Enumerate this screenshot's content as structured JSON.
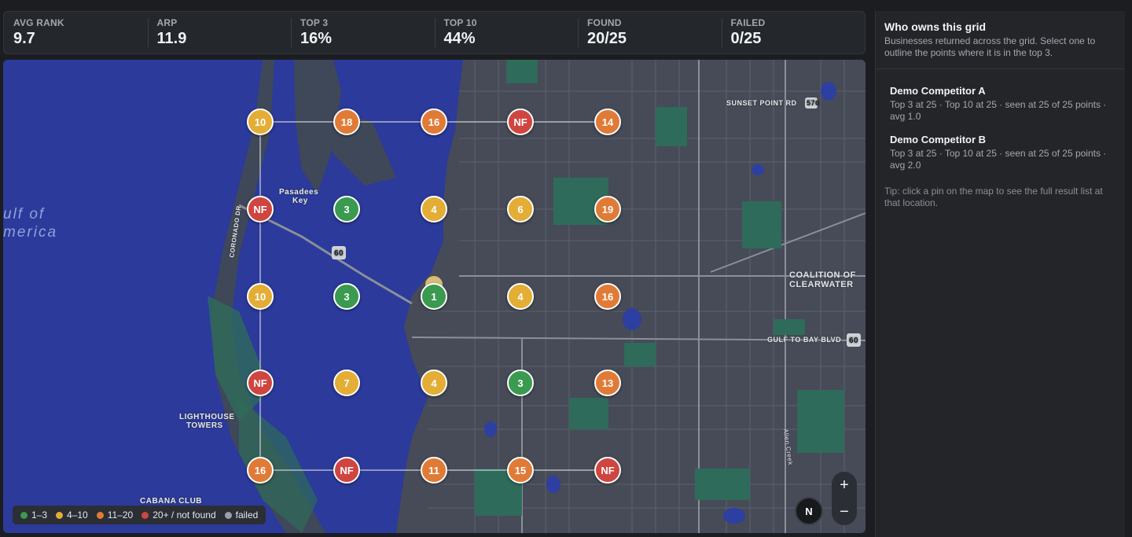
{
  "stats": [
    {
      "label": "AVG RANK",
      "value": "9.7"
    },
    {
      "label": "ARP",
      "value": "11.9"
    },
    {
      "label": "TOP 3",
      "value": "16%"
    },
    {
      "label": "TOP 10",
      "value": "44%"
    },
    {
      "label": "FOUND",
      "value": "20/25"
    },
    {
      "label": "FAILED",
      "value": "0/25"
    }
  ],
  "map": {
    "labels": {
      "gulf_line1": "ulf of",
      "gulf_line2": "merica",
      "pasadena_key_1": "Pasadees",
      "pasadena_key_2": "Key",
      "coronado": "CORONADO DR",
      "sunset": "SUNSET POINT RD",
      "route_576": "576",
      "route_60a": "60",
      "route_60b": "60",
      "coalition_1": "COALITION OF",
      "coalition_2": "CLEARWATER",
      "gulf_to_bay": "GULF TO BAY BLVD",
      "lighthouse_1": "LIGHTHOUSE",
      "lighthouse_2": "TOWERS",
      "cabana": "CABANA CLUB",
      "allen_creek": "Allen Creek"
    },
    "grid_ranks": [
      [
        "10",
        "18",
        "16",
        "NF",
        "14"
      ],
      [
        "NF",
        "3",
        "4",
        "6",
        "19"
      ],
      [
        "10",
        "3",
        "1",
        "4",
        "16"
      ],
      [
        "NF",
        "7",
        "4",
        "3",
        "13"
      ],
      [
        "16",
        "NF",
        "11",
        "15",
        "NF"
      ]
    ],
    "legend": [
      {
        "label": "1–3",
        "color": "#3a9a4f"
      },
      {
        "label": "4–10",
        "color": "#e3ad36"
      },
      {
        "label": "11–20",
        "color": "#e07b37"
      },
      {
        "label": "20+ / not found",
        "color": "#cf4540"
      },
      {
        "label": "failed",
        "color": "#9aa0a8"
      }
    ],
    "controls": {
      "zoom_in": "+",
      "zoom_out": "−",
      "compass": "N"
    }
  },
  "panel": {
    "title": "Who owns this grid",
    "subtitle": "Businesses returned across the grid. Select one to outline the points where it is in the top 3.",
    "competitors": [
      {
        "name": "Demo Competitor A",
        "meta": "Top 3 at 25 · Top 10 at 25 · seen at 25 of 25 points · avg 1.0"
      },
      {
        "name": "Demo Competitor B",
        "meta": "Top 3 at 25 · Top 10 at 25 · seen at 25 of 25 points · avg 2.0"
      }
    ],
    "tip": "Tip: click a pin on the map to see the full result list at that location."
  }
}
